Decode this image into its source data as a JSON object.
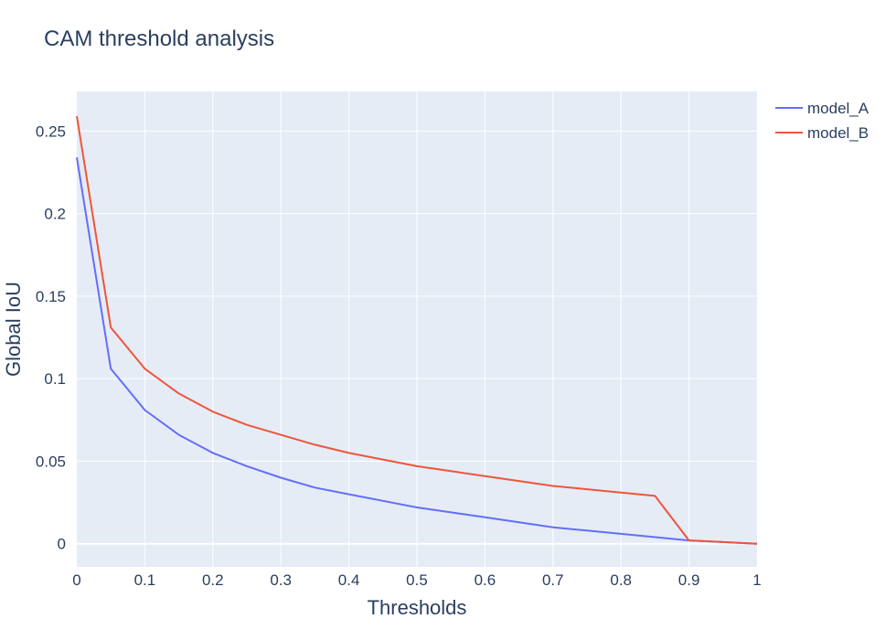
{
  "chart_data": {
    "type": "line",
    "title": "CAM threshold analysis",
    "xlabel": "Thresholds",
    "ylabel": "Global IoU",
    "xlim": [
      0,
      1
    ],
    "ylim": [
      -0.014,
      0.274
    ],
    "x_ticks": [
      "0",
      "0.1",
      "0.2",
      "0.3",
      "0.4",
      "0.5",
      "0.6",
      "0.7",
      "0.8",
      "0.9",
      "1"
    ],
    "y_ticks": [
      "0",
      "0.05",
      "0.1",
      "0.15",
      "0.2",
      "0.25"
    ],
    "grid": true,
    "legend_position": "top-right",
    "x": [
      0,
      0.05,
      0.1,
      0.15,
      0.2,
      0.25,
      0.3,
      0.35,
      0.4,
      0.45,
      0.5,
      0.55,
      0.6,
      0.65,
      0.7,
      0.75,
      0.8,
      0.85,
      0.9,
      0.95,
      1
    ],
    "series": [
      {
        "name": "model_A",
        "color": "#636efa",
        "values": [
          0.234,
          0.106,
          0.081,
          0.066,
          0.055,
          0.047,
          0.04,
          0.034,
          0.03,
          0.026,
          0.022,
          0.019,
          0.016,
          0.013,
          0.01,
          0.008,
          0.006,
          0.004,
          0.002,
          0.001,
          0.0
        ]
      },
      {
        "name": "model_B",
        "color": "#ef553b",
        "values": [
          0.259,
          0.131,
          0.106,
          0.091,
          0.08,
          0.072,
          0.066,
          0.06,
          0.055,
          0.051,
          0.047,
          0.044,
          0.041,
          0.038,
          0.035,
          0.033,
          0.031,
          0.029,
          0.002,
          0.001,
          0.0
        ]
      }
    ]
  },
  "colors": {
    "plot_background": "#e5ecf6",
    "grid": "#ffffff",
    "text": "#2a3f5f"
  }
}
